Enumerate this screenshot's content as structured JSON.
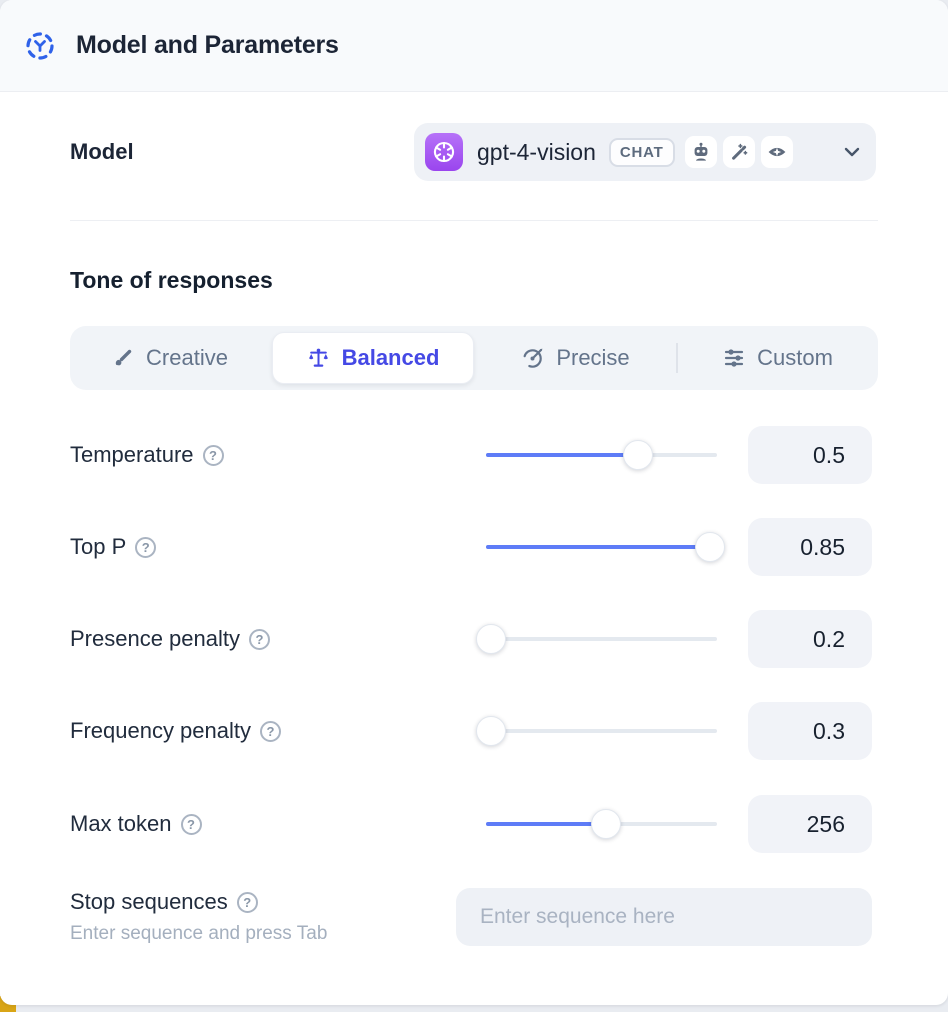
{
  "header": {
    "title": "Model and Parameters",
    "icon": "model-hub-icon"
  },
  "model": {
    "label": "Model",
    "selected_model": "gpt-4-vision",
    "provider_icon": "openai-logo",
    "type_badge": "CHAT",
    "capability_icons": [
      "robot-icon",
      "magic-wand-icon",
      "vision-eye-icon"
    ],
    "dropdown_icon": "chevron-down-icon"
  },
  "tone": {
    "heading": "Tone of responses",
    "options": [
      {
        "label": "Creative",
        "icon": "paintbrush-icon",
        "selected": false
      },
      {
        "label": "Balanced",
        "icon": "balance-scale-icon",
        "selected": true
      },
      {
        "label": "Precise",
        "icon": "target-arrow-icon",
        "selected": false
      },
      {
        "label": "Custom",
        "icon": "sliders-icon",
        "selected": false
      }
    ]
  },
  "parameters": [
    {
      "label": "Temperature",
      "value": "0.5",
      "slider_percent": 66
    },
    {
      "label": "Top P",
      "value": "0.85",
      "slider_percent": 97
    },
    {
      "label": "Presence penalty",
      "value": "0.2",
      "slider_percent": 2
    },
    {
      "label": "Frequency penalty",
      "value": "0.3",
      "slider_percent": 2
    },
    {
      "label": "Max token",
      "value": "256",
      "slider_percent": 52
    }
  ],
  "help_icon_glyph": "?",
  "stop_sequences": {
    "label": "Stop sequences",
    "hint": "Enter sequence and press Tab",
    "placeholder": "Enter sequence here"
  },
  "colors": {
    "accent_blue": "#2f62e9",
    "selected_indigo": "#4549e5",
    "slider_blue": "#5e7cf7",
    "provider_purple": "#9a45ee",
    "header_bg": "#f8fafc",
    "field_bg": "#eef1f6",
    "corner_accent_yellow": "#d9a516"
  }
}
